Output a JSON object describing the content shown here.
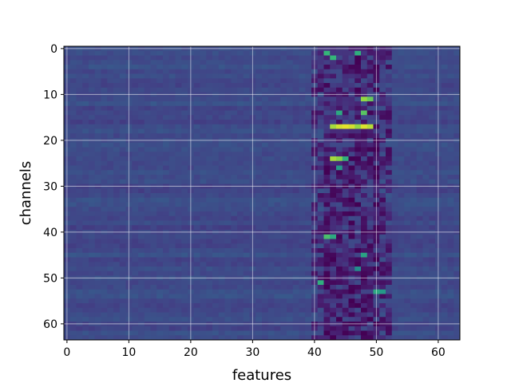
{
  "chart_data": {
    "type": "heatmap",
    "title": "",
    "xlabel": "features",
    "ylabel": "channels",
    "n_cols": 64,
    "n_rows": 64,
    "xlim": [
      -0.5,
      63.5
    ],
    "ylim": [
      63.5,
      -0.5
    ],
    "x_ticks": [
      0,
      10,
      20,
      30,
      40,
      50,
      60
    ],
    "y_ticks": [
      0,
      10,
      20,
      30,
      40,
      50,
      60
    ],
    "grid": true,
    "colormap": "viridis",
    "value_range": [
      0,
      1
    ],
    "background_level": 0.28,
    "active_feature_band": [
      40,
      52
    ],
    "hotspots": [
      {
        "channel": 1,
        "feature": 42,
        "value": 0.75
      },
      {
        "channel": 2,
        "feature": 43,
        "value": 0.75
      },
      {
        "channel": 1,
        "feature": 47,
        "value": 0.72
      },
      {
        "channel": 11,
        "feature": 48,
        "value": 0.88
      },
      {
        "channel": 11,
        "feature": 49,
        "value": 0.82
      },
      {
        "channel": 14,
        "feature": 44,
        "value": 0.7
      },
      {
        "channel": 14,
        "feature": 48,
        "value": 0.8
      },
      {
        "channel": 17,
        "feature": 43,
        "value": 0.9
      },
      {
        "channel": 17,
        "feature": 44,
        "value": 0.95
      },
      {
        "channel": 17,
        "feature": 45,
        "value": 0.97
      },
      {
        "channel": 17,
        "feature": 46,
        "value": 0.95
      },
      {
        "channel": 17,
        "feature": 47,
        "value": 0.88
      },
      {
        "channel": 17,
        "feature": 48,
        "value": 0.96
      },
      {
        "channel": 17,
        "feature": 49,
        "value": 0.92
      },
      {
        "channel": 24,
        "feature": 43,
        "value": 0.9
      },
      {
        "channel": 24,
        "feature": 44,
        "value": 0.86
      },
      {
        "channel": 24,
        "feature": 45,
        "value": 0.72
      },
      {
        "channel": 26,
        "feature": 44,
        "value": 0.65
      },
      {
        "channel": 41,
        "feature": 42,
        "value": 0.78
      },
      {
        "channel": 41,
        "feature": 43,
        "value": 0.7
      },
      {
        "channel": 45,
        "feature": 48,
        "value": 0.68
      },
      {
        "channel": 48,
        "feature": 47,
        "value": 0.6
      },
      {
        "channel": 51,
        "feature": 41,
        "value": 0.72
      },
      {
        "channel": 53,
        "feature": 50,
        "value": 0.7
      },
      {
        "channel": 53,
        "feature": 51,
        "value": 0.65
      }
    ],
    "coldspots": [
      {
        "channel": 5,
        "feature": 45,
        "value": 0.05
      },
      {
        "channel": 7,
        "feature": 47,
        "value": 0.06
      },
      {
        "channel": 19,
        "feature": 49,
        "value": 0.08
      },
      {
        "channel": 31,
        "feature": 43,
        "value": 0.03
      },
      {
        "channel": 31,
        "feature": 44,
        "value": 0.04
      },
      {
        "channel": 34,
        "feature": 46,
        "value": 0.06
      },
      {
        "channel": 42,
        "feature": 44,
        "value": 0.05
      },
      {
        "channel": 56,
        "feature": 44,
        "value": 0.06
      },
      {
        "channel": 62,
        "feature": 46,
        "value": 0.04
      }
    ]
  }
}
